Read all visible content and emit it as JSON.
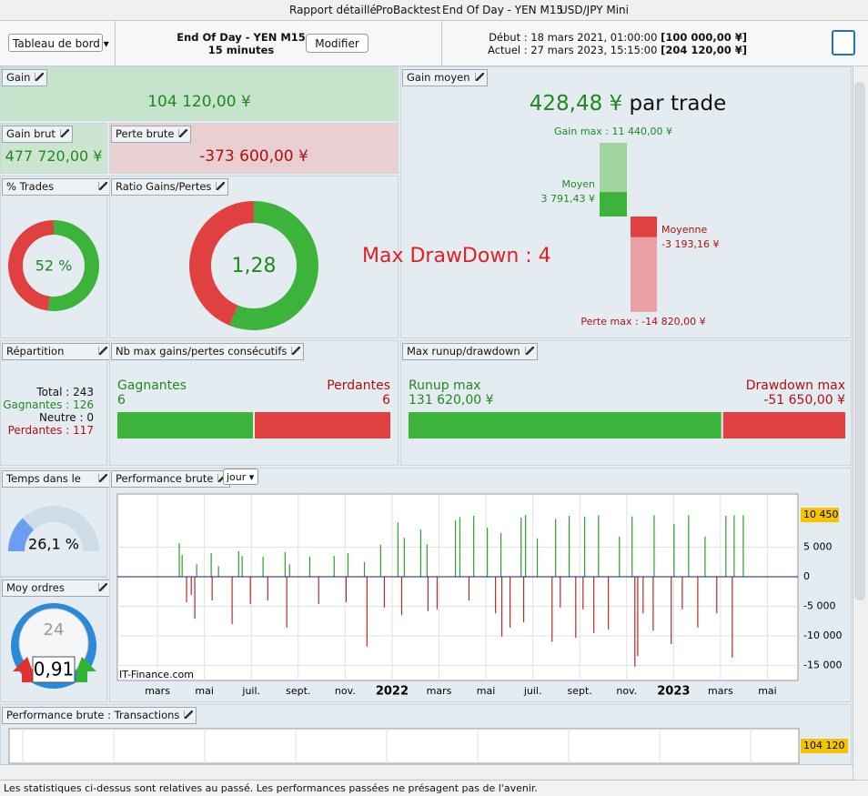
{
  "menu": {
    "items": [
      "Rapport détaillé",
      "ProBacktest",
      "End Of Day - YEN M15",
      "USD/JPY Mini"
    ]
  },
  "toolbar": {
    "view": "Tableau de bord",
    "strategy": "End Of Day - YEN M15",
    "timeframe": "15 minutes",
    "button": "Modifier",
    "start_label": "Début :",
    "start_date": "18 mars 2021, 01:00:00",
    "start_capital": "[100 000,00 ¥]",
    "current_label": "Actuel :",
    "current_date": "27 mars 2023, 15:15:00",
    "current_capital": "[204 120,00 ¥]"
  },
  "gain": {
    "title": "Gain",
    "value": "104 120,00 ¥"
  },
  "gain_brut": {
    "title": "Gain brut",
    "value": {
      "value": 477720,
      "label": "477 720,00 ¥"
    }
  },
  "perte_brute": {
    "title": "Perte brute",
    "value": {
      "value": -373600,
      "label": "-373 600,00 ¥"
    }
  },
  "gain_moyen": {
    "title": "Gain moyen",
    "value": "428,48 ¥",
    "suffix": "par trade",
    "gain_max_label": "Gain max :",
    "gain_max": {
      "value": 11440,
      "label": "11 440,00 ¥"
    },
    "moyen_label": "Moyen",
    "moyen": {
      "value": 3791.43,
      "label": "3 791,43 ¥"
    },
    "moyenne_label": "Moyenne",
    "moyenne": {
      "value": -3193.16,
      "label": "-3 193,16 ¥"
    },
    "perte_max_label": "Perte max :",
    "perte_max": {
      "value": -14820,
      "label": "-14 820,00 ¥"
    }
  },
  "pct_trades": {
    "title": "% Trades gagna...",
    "value": {
      "value": 52,
      "label": "52 %"
    }
  },
  "ratio": {
    "title": "Ratio Gains/Pertes",
    "value": "1,28"
  },
  "drawdown_note": "Max DrawDown : 4",
  "repartition": {
    "title": "Répartition des...",
    "rows": [
      {
        "label": "Total :",
        "value": 243
      },
      {
        "label": "Gagnantes :",
        "value": 126
      },
      {
        "label": "Neutre :",
        "value": 0
      },
      {
        "label": "Perdantes :",
        "value": 117
      }
    ]
  },
  "consecutifs": {
    "title": "Nb max gains/pertes consécutifs",
    "win_label": "Gagnantes",
    "win": 6,
    "loss_label": "Perdantes",
    "loss": 6
  },
  "runup": {
    "title": "Max runup/drawdown",
    "runup_label": "Runup max",
    "runup": {
      "value": 131620,
      "label": "131 620,00 ¥"
    },
    "drawdown_label": "Drawdown max",
    "drawdown": {
      "value": -51650,
      "label": "-51 650,00 ¥"
    }
  },
  "temps": {
    "title": "Temps dans le ...",
    "value": {
      "value": 26.1,
      "label": "26,1 %"
    }
  },
  "moy_ordres": {
    "title": "Moy ordres exe...",
    "clock": 24,
    "value": "0,91"
  },
  "chart_data": {
    "type": "bar",
    "title": "Performance brute",
    "period": "jour",
    "watermark": "IT-Finance.com",
    "colors": {
      "positive": "#2e9e2e",
      "negative": "#b82a2a",
      "zero_line": "#1a1a8c"
    },
    "x": [
      2.93,
      3.05,
      3.24,
      3.44,
      3.59,
      3.67,
      4.29,
      4.33,
      4.6,
      5.18,
      5.46,
      5.61,
      5.96,
      6.5,
      6.7,
      7.44,
      7.51,
      7.63,
      8.49,
      8.87,
      9.53,
      10.04,
      10.12,
      10.82,
      10.93,
      11.51,
      11.67,
      12.25,
      12.41,
      12.52,
      13.22,
      13.49,
      13.53,
      13.92,
      14.7,
      14.89,
      15.28,
      15.48,
      16.06,
      16.41,
      16.64,
      16.68,
      17.03,
      17.5,
      17.61,
      17.69,
      18.19,
      18.82,
      18.97,
      19.17,
      19.55,
      19.83,
      20.14,
      20.21,
      20.6,
      20.8,
      21.22,
      21.69,
      22.23,
      22.35,
      22.47,
      22.7,
      23.13,
      23.17,
      23.9,
      24.02,
      24.37,
      24.64,
      25.03,
      25.34,
      25.84,
      26.23,
      26.5,
      26.58,
      26.97
    ],
    "values": [
      5700,
      3700,
      -4300,
      -3100,
      -7100,
      2100,
      4000,
      -4000,
      1800,
      -8000,
      4300,
      3500,
      -4600,
      3400,
      -4000,
      4200,
      -8600,
      2100,
      3400,
      -4600,
      3500,
      -4300,
      4000,
      2500,
      -11800,
      5400,
      -5200,
      9200,
      -6500,
      6600,
      8000,
      5500,
      -5800,
      -5500,
      9500,
      10100,
      -4000,
      10300,
      8300,
      -6200,
      7400,
      -10100,
      -8600,
      10000,
      -7700,
      10450,
      6500,
      -11000,
      9800,
      -5200,
      10300,
      -10300,
      -5500,
      10200,
      -9500,
      10400,
      -8900,
      6800,
      10200,
      -15200,
      -13400,
      -6200,
      -9100,
      10400,
      -11400,
      8900,
      -5500,
      10400,
      -8600,
      6800,
      -6200,
      10300,
      -13700,
      10400,
      10400
    ],
    "xlim": [
      0.29,
      29.3
    ],
    "xticks": [
      {
        "value": 2,
        "label": "mars"
      },
      {
        "value": 4,
        "label": "mai"
      },
      {
        "value": 6,
        "label": "juil."
      },
      {
        "value": 8,
        "label": "sept."
      },
      {
        "value": 10,
        "label": "nov."
      },
      {
        "value": 12,
        "label": "2022"
      },
      {
        "value": 14,
        "label": "mars"
      },
      {
        "value": 16,
        "label": "mai"
      },
      {
        "value": 18,
        "label": "juil."
      },
      {
        "value": 20,
        "label": "sept."
      },
      {
        "value": 22,
        "label": "nov."
      },
      {
        "value": 24,
        "label": "2023"
      },
      {
        "value": 26,
        "label": "mars"
      },
      {
        "value": 28,
        "label": "mai"
      }
    ],
    "ylim": [
      -17540,
      14000
    ],
    "yticks": [
      {
        "value": -15000,
        "label": "-15 000"
      },
      {
        "value": -10000,
        "label": "-10 000"
      },
      {
        "value": -5000,
        "label": "-5 000"
      },
      0,
      {
        "value": 5000,
        "label": "5 000"
      }
    ],
    "max_label": {
      "value": 10450,
      "label": "10 450"
    }
  },
  "transactions": {
    "title": "Performance brute : Transactions",
    "last": {
      "value": 104120,
      "label": "104 120"
    }
  },
  "footer": "Les statistiques ci-dessus sont relatives au passé. Les performances passées ne présagent pas de l'avenir."
}
